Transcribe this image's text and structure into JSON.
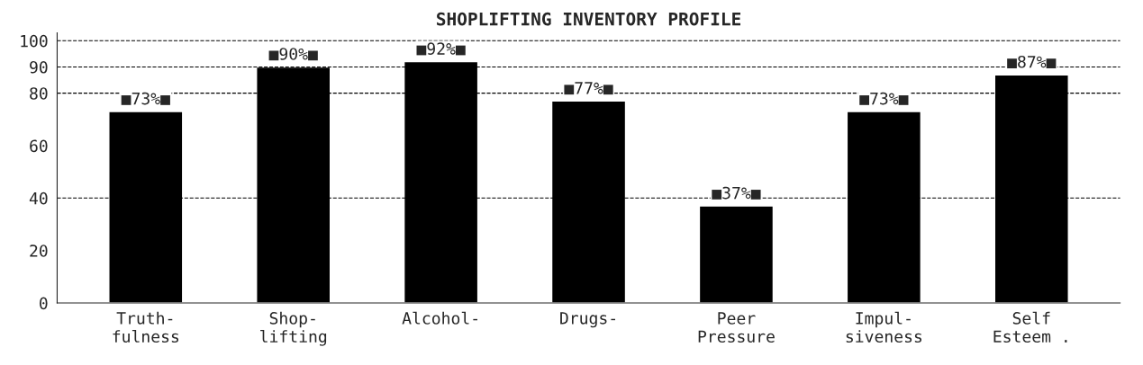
{
  "chart_data": {
    "type": "bar",
    "title": "SHOPLIFTING INVENTORY PROFILE",
    "categories": [
      "Truth-\nfulness",
      "Shop-\nlifting",
      "Alcohol-",
      "Drugs-",
      "Peer\nPressure",
      "Impul-\nsiveness",
      "Self\nEsteem ."
    ],
    "values": [
      73,
      90,
      92,
      77,
      37,
      73,
      87
    ],
    "value_labels": [
      "■73%■",
      "■90%■",
      "■92%■",
      "■77%■",
      "■37%■",
      "■73%■",
      "■87%■"
    ],
    "color": "#000000",
    "ylim": [
      0,
      103
    ],
    "yticks": [
      0,
      20,
      40,
      60,
      80,
      90,
      100
    ],
    "ref_lines": [
      {
        "axis": "y",
        "value": 40,
        "line_style": "dashed"
      },
      {
        "axis": "y",
        "value": 80,
        "line_style": "dashed"
      },
      {
        "axis": "y",
        "value": 90,
        "line_style": "dashed"
      },
      {
        "axis": "y",
        "value": 100,
        "line_style": "dashed"
      }
    ],
    "grid": false,
    "legend": false
  }
}
